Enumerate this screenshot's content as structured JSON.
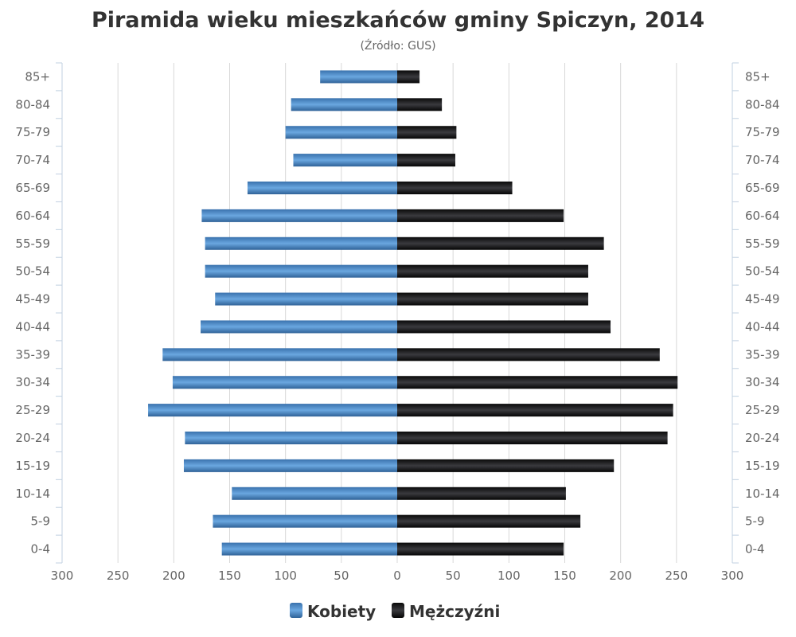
{
  "chart_data": {
    "type": "bar",
    "orientation": "horizontal",
    "layout": "population-pyramid",
    "title": "Piramida wieku mieszkańców gminy Spiczyn, 2014",
    "subtitle": "(Źródło: GUS)",
    "categories": [
      "85+",
      "80-84",
      "75-79",
      "70-74",
      "65-69",
      "60-64",
      "55-59",
      "50-54",
      "45-49",
      "40-44",
      "35-39",
      "30-34",
      "25-29",
      "20-24",
      "15-19",
      "10-14",
      "5-9",
      "0-4"
    ],
    "series": [
      {
        "name": "Kobiety",
        "side": "left",
        "color": "#3b78b8",
        "values": [
          69,
          95,
          100,
          93,
          134,
          175,
          172,
          172,
          163,
          176,
          210,
          201,
          223,
          190,
          191,
          148,
          165,
          157
        ]
      },
      {
        "name": "Mężczyźni",
        "side": "right",
        "color": "#111111",
        "values": [
          20,
          40,
          53,
          52,
          103,
          149,
          185,
          171,
          171,
          191,
          235,
          251,
          247,
          242,
          194,
          151,
          164,
          149
        ]
      }
    ],
    "xlim": [
      -300,
      300
    ],
    "x_tick_labels": [
      "300",
      "250",
      "200",
      "150",
      "100",
      "50",
      "0",
      "50",
      "100",
      "150",
      "200",
      "250",
      "300"
    ],
    "grid": true,
    "legend": "bottom-center"
  }
}
